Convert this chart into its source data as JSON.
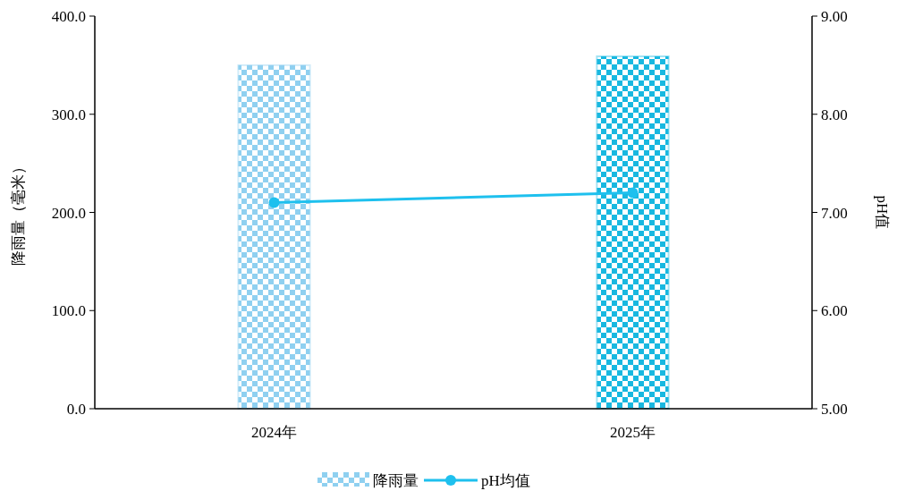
{
  "chart_data": {
    "type": "bar",
    "categories": [
      "2024年",
      "2025年"
    ],
    "series": [
      {
        "name": "降雨量",
        "colors": [
          "#8fd0f0",
          "#18b8e0"
        ],
        "values": [
          350,
          359
        ]
      },
      {
        "name": "pH均值",
        "type": "line",
        "axis": "y2",
        "color": "#1ec0ee",
        "values": [
          7.1,
          7.2
        ]
      }
    ],
    "ylabel": "降雨量（毫米）",
    "y2label": "pH值",
    "ylim": [
      0,
      400
    ],
    "yticks": [
      {
        "value": 0,
        "label": "0.0"
      },
      {
        "value": 100,
        "label": "100.0"
      },
      {
        "value": 200,
        "label": "200.0"
      },
      {
        "value": 300,
        "label": "300.0"
      },
      {
        "value": 400,
        "label": "400.0"
      }
    ],
    "y2lim": [
      5,
      9
    ],
    "y2ticks": [
      {
        "value": 5,
        "label": "5.00"
      },
      {
        "value": 6,
        "label": "6.00"
      },
      {
        "value": 7,
        "label": "7.00"
      },
      {
        "value": 8,
        "label": "8.00"
      },
      {
        "value": 9,
        "label": "9.00"
      }
    ],
    "legend": "bottom",
    "marker": "circle",
    "grid": false
  }
}
